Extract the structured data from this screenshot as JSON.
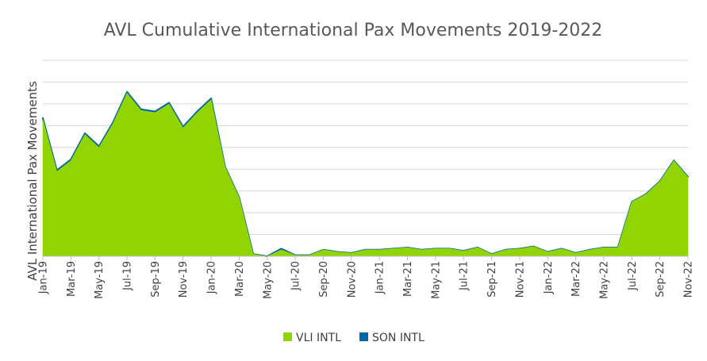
{
  "chart_data": {
    "type": "area",
    "title": "AVL Cumulative International Pax Movements 2019-2022",
    "xlabel": "",
    "ylabel": "AVL International Pax Movements",
    "stacked": true,
    "y_tick_labels_shown": false,
    "ylim": [
      0,
      9
    ],
    "grid": true,
    "legend_position": "bottom",
    "x": [
      "Jan-19",
      "Feb-19",
      "Mar-19",
      "Apr-19",
      "May-19",
      "Jun-19",
      "Jul-19",
      "Aug-19",
      "Sep-19",
      "Oct-19",
      "Nov-19",
      "Dec-19",
      "Jan-20",
      "Feb-20",
      "Mar-20",
      "Apr-20",
      "May-20",
      "Jun-20",
      "Jul-20",
      "Aug-20",
      "Sep-20",
      "Oct-20",
      "Nov-20",
      "Dec-20",
      "Jan-21",
      "Feb-21",
      "Mar-21",
      "Apr-21",
      "May-21",
      "Jun-21",
      "Jul-21",
      "Aug-21",
      "Sep-21",
      "Oct-21",
      "Nov-21",
      "Dec-21",
      "Jan-22",
      "Feb-22",
      "Mar-22",
      "Apr-22",
      "May-22",
      "Jun-22",
      "Jul-22",
      "Aug-22",
      "Sep-22",
      "Oct-22",
      "Nov-22"
    ],
    "x_tick_labels": [
      "Jan-19",
      "Mar-19",
      "May-19",
      "Jul-19",
      "Sep-19",
      "Nov-19",
      "Jan-20",
      "Mar-20",
      "May-20",
      "Jul-20",
      "Sep-20",
      "Nov-20",
      "Jan-21",
      "Mar-21",
      "May-21",
      "Jul-21",
      "Sep-21",
      "Nov-21",
      "Jan-22",
      "Mar-22",
      "May-22",
      "Jul-22",
      "Sep-22",
      "Nov-22"
    ],
    "series": [
      {
        "name": "VLI INTL",
        "color": "#92D400",
        "values": [
          6.3,
          3.9,
          4.4,
          5.6,
          5.0,
          6.1,
          7.5,
          6.7,
          6.6,
          7.0,
          5.9,
          6.6,
          7.2,
          4.1,
          2.7,
          0.1,
          0.0,
          0.3,
          0.05,
          0.05,
          0.3,
          0.2,
          0.15,
          0.3,
          0.3,
          0.35,
          0.4,
          0.3,
          0.35,
          0.35,
          0.25,
          0.4,
          0.1,
          0.3,
          0.35,
          0.45,
          0.2,
          0.35,
          0.15,
          0.3,
          0.4,
          0.4,
          2.5,
          2.85,
          3.45,
          4.4,
          3.65
        ]
      },
      {
        "name": "SON INTL",
        "color": "#0067A6",
        "values": [
          0.05,
          0.05,
          0.05,
          0.05,
          0.05,
          0.05,
          0.05,
          0.05,
          0.05,
          0.05,
          0.05,
          0.05,
          0.05,
          0.0,
          0.0,
          0.0,
          0.0,
          0.05,
          0.0,
          0.0,
          0.0,
          0.0,
          0.0,
          0.0,
          0.0,
          0.0,
          0.0,
          0.0,
          0.0,
          0.0,
          0.0,
          0.0,
          0.0,
          0.0,
          0.0,
          0.0,
          0.0,
          0.0,
          0.0,
          0.0,
          0.0,
          0.0,
          0.0,
          0.0,
          0.0,
          0.0,
          0.0
        ]
      }
    ]
  }
}
